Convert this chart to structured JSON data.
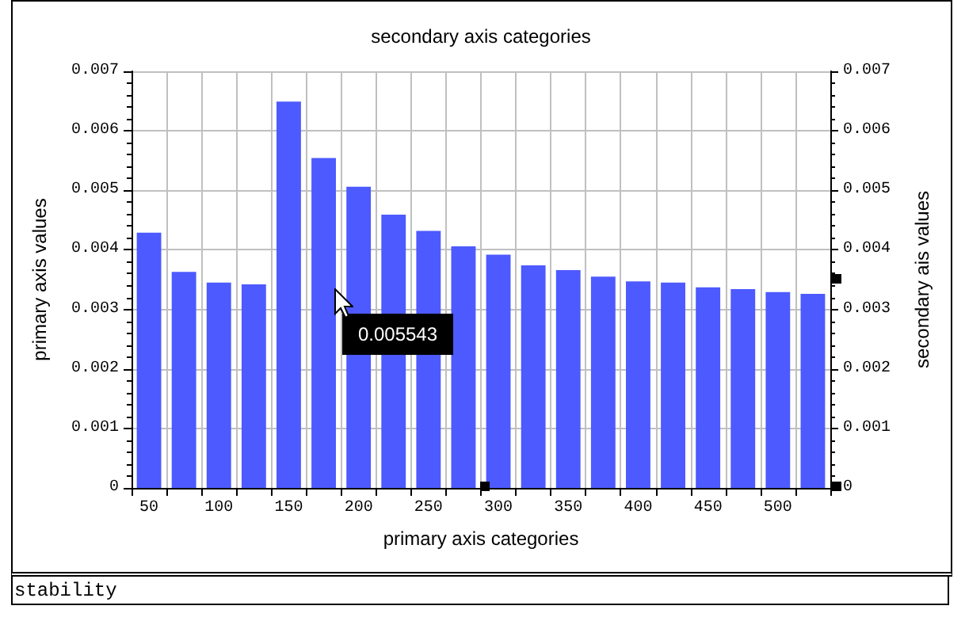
{
  "chart_data": {
    "type": "bar",
    "x2label": "secondary axis categories",
    "xlabel": "primary axis categories",
    "ylabel": "primary axis values",
    "y2label": "secondary ais values",
    "categories": [
      "50",
      null,
      "100",
      null,
      "150",
      null,
      "200",
      null,
      "250",
      null,
      "300",
      null,
      "350",
      null,
      "400",
      null,
      "450",
      null,
      "500",
      null
    ],
    "series": [
      {
        "color": "#4d5aff",
        "values": [
          0.00429,
          0.00363,
          0.00345,
          0.00342,
          0.00649,
          0.005543,
          0.00506,
          0.00459,
          0.00432,
          0.00406,
          0.00392,
          0.00374,
          0.00366,
          0.00355,
          0.00347,
          0.00345,
          0.00337,
          0.00334,
          0.00329,
          0.00326
        ]
      }
    ],
    "ylim": [
      0,
      0.007
    ],
    "yticks": [
      0,
      0.001,
      0.002,
      0.003,
      0.004,
      0.005,
      0.006,
      0.007
    ],
    "y2lim": [
      0,
      0.007
    ],
    "y2ticks": [
      0,
      0.001,
      0.002,
      0.003,
      0.004,
      0.005,
      0.006,
      0.007
    ],
    "grid": true,
    "annotations": [
      "0.005543",
      "stability"
    ]
  }
}
